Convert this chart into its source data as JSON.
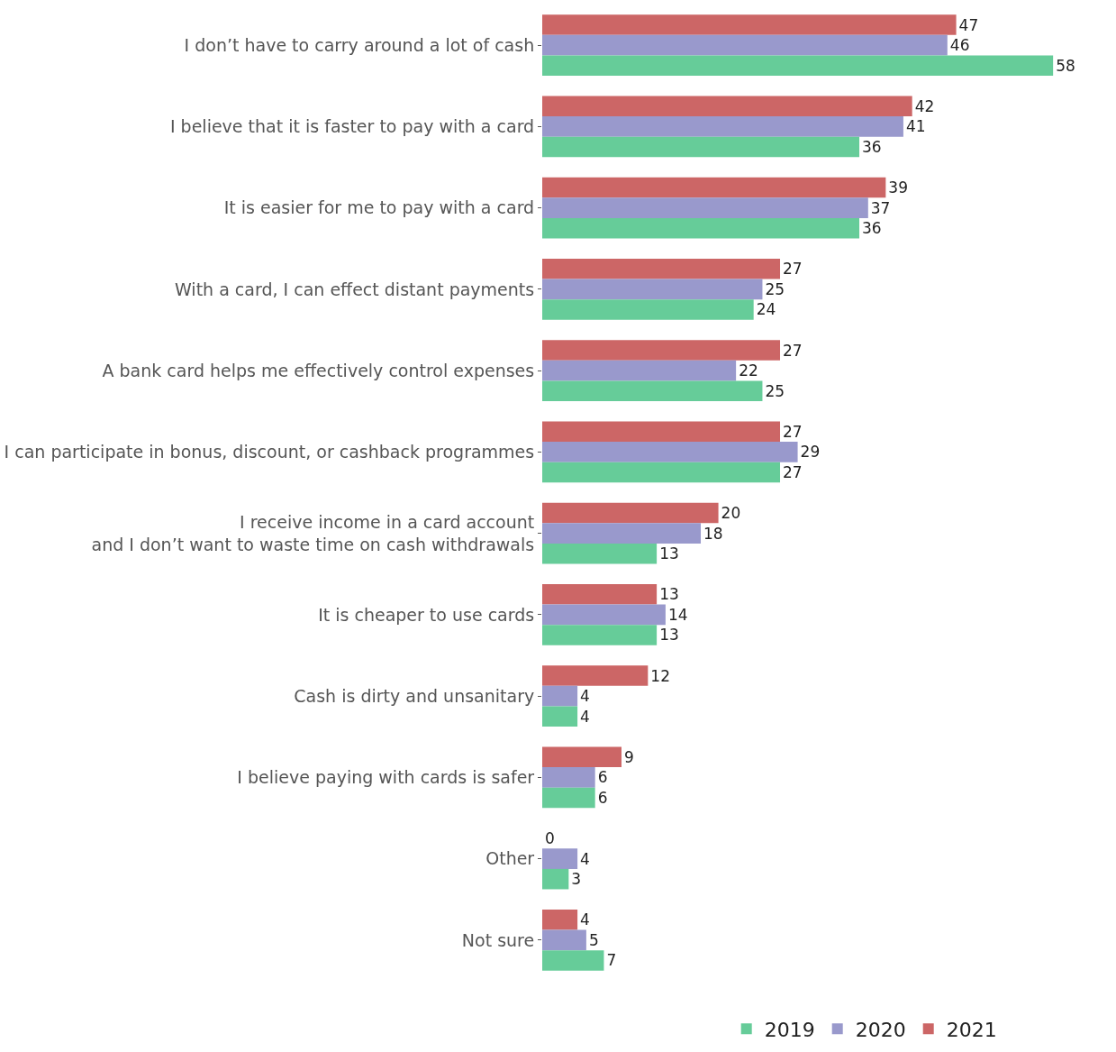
{
  "chart_data": {
    "type": "bar",
    "orientation": "horizontal",
    "data_labels": true,
    "legend": "bottom",
    "categories": [
      "I don’t have to carry around a lot of cash",
      "I believe that it is faster to pay with a card",
      "It is easier for me to pay with a card",
      "With a card, I can effect distant payments",
      "A bank card helps me effectively control expenses",
      "I can participate in bonus, discount, or cashback programmes",
      "I receive income in a card account\nand I don’t want to waste time on cash withdrawals",
      "It is cheaper to use cards",
      "Cash is dirty and unsanitary",
      "I believe paying with cards is safer",
      "Other",
      "Not sure"
    ],
    "series": [
      {
        "name": "2019",
        "color": "#66cc99",
        "values": [
          58,
          36,
          36,
          24,
          25,
          27,
          13,
          13,
          4,
          6,
          3,
          7
        ]
      },
      {
        "name": "2020",
        "color": "#9999cc",
        "values": [
          46,
          41,
          37,
          25,
          22,
          29,
          18,
          14,
          4,
          6,
          4,
          5
        ]
      },
      {
        "name": "2021",
        "color": "#cc6666",
        "values": [
          47,
          42,
          39,
          27,
          27,
          27,
          20,
          13,
          12,
          9,
          0,
          4
        ]
      }
    ]
  }
}
